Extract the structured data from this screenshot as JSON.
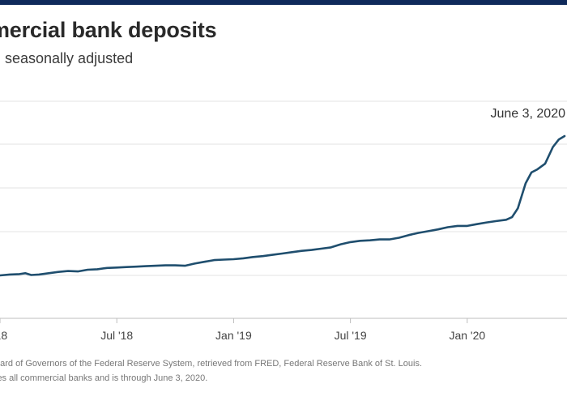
{
  "header": {
    "title": "mercial bank deposits",
    "subtitle": ", seasonally adjusted"
  },
  "footnotes": [
    "oard of Governors of the Federal Reserve System, retrieved from FRED, Federal Reserve Bank of St. Louis.",
    "ies all commercial banks and is through June 3, 2020."
  ],
  "colors": {
    "top_bar": "#0f2a5b",
    "line": "#1f4e6e",
    "grid": "#e3e3e3",
    "axis": "#bdbdbd"
  },
  "chart_data": {
    "type": "line",
    "x_ticks": [
      "'18",
      "Jul '18",
      "Jan '19",
      "Jul '19",
      "Jan '20"
    ],
    "x_tick_months": [
      0,
      6,
      12,
      18,
      24
    ],
    "annotation": "June 3, 2020",
    "grid": "horizontal",
    "y_ticks_visible": false,
    "series": [
      {
        "values": [
          [
            0,
            0.0
          ],
          [
            0.5,
            0.02
          ],
          [
            1,
            0.03
          ],
          [
            1.3,
            0.05
          ],
          [
            1.6,
            0.01
          ],
          [
            2,
            0.02
          ],
          [
            2.5,
            0.05
          ],
          [
            3,
            0.08
          ],
          [
            3.5,
            0.1
          ],
          [
            4,
            0.09
          ],
          [
            4.5,
            0.13
          ],
          [
            5,
            0.14
          ],
          [
            5.5,
            0.17
          ],
          [
            6,
            0.18
          ],
          [
            6.5,
            0.19
          ],
          [
            7,
            0.2
          ],
          [
            7.5,
            0.21
          ],
          [
            8,
            0.22
          ],
          [
            8.5,
            0.23
          ],
          [
            9,
            0.23
          ],
          [
            9.5,
            0.22
          ],
          [
            10,
            0.27
          ],
          [
            10.5,
            0.31
          ],
          [
            11,
            0.35
          ],
          [
            11.5,
            0.36
          ],
          [
            12,
            0.37
          ],
          [
            12.5,
            0.39
          ],
          [
            13,
            0.42
          ],
          [
            13.5,
            0.44
          ],
          [
            14,
            0.47
          ],
          [
            14.5,
            0.5
          ],
          [
            15,
            0.53
          ],
          [
            15.5,
            0.56
          ],
          [
            16,
            0.58
          ],
          [
            16.5,
            0.61
          ],
          [
            17,
            0.64
          ],
          [
            17.5,
            0.71
          ],
          [
            18,
            0.76
          ],
          [
            18.5,
            0.79
          ],
          [
            19,
            0.8
          ],
          [
            19.5,
            0.82
          ],
          [
            20,
            0.82
          ],
          [
            20.5,
            0.86
          ],
          [
            21,
            0.92
          ],
          [
            21.5,
            0.97
          ],
          [
            22,
            1.01
          ],
          [
            22.5,
            1.05
          ],
          [
            23,
            1.1
          ],
          [
            23.5,
            1.13
          ],
          [
            24,
            1.13
          ],
          [
            24.5,
            1.17
          ],
          [
            25,
            1.21
          ],
          [
            25.5,
            1.24
          ],
          [
            26,
            1.27
          ],
          [
            26.3,
            1.33
          ],
          [
            26.6,
            1.53
          ],
          [
            27,
            2.1
          ],
          [
            27.3,
            2.35
          ],
          [
            27.6,
            2.42
          ],
          [
            28,
            2.55
          ],
          [
            28.4,
            2.93
          ],
          [
            28.7,
            3.1
          ],
          [
            29,
            3.18
          ]
        ]
      }
    ]
  }
}
